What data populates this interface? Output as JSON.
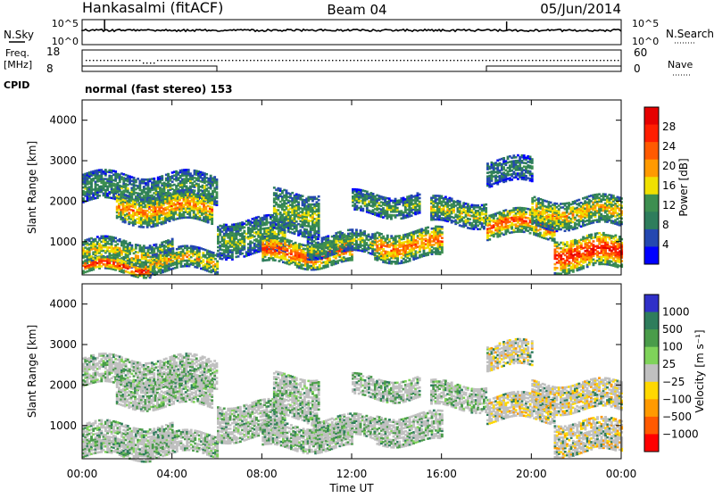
{
  "header": {
    "station": "Hankasalmi (fitACF)",
    "beam": "Beam 04",
    "date": "05/Jun/2014",
    "mode": "normal (fast stereo) 153"
  },
  "noise_panel": {
    "left_label": "N.Sky",
    "right_label": "N.Search",
    "left_ticks": [
      "10^5",
      "10^0"
    ],
    "right_ticks": [
      "10^5",
      "10^0"
    ]
  },
  "freq_panel": {
    "left_label_line1": "Freq.",
    "left_label_line2": "[MHz]",
    "right_label": "Nave",
    "left_ticks": [
      "18",
      "8"
    ],
    "right_ticks": [
      "60",
      "0"
    ]
  },
  "cpid_label": "CPID",
  "colors": {
    "power": [
      "#0000ff",
      "#2448b0",
      "#2e7d5c",
      "#3d8f50",
      "#f0e000",
      "#ff9a00",
      "#ff5a00",
      "#ff1e00",
      "#e60000"
    ],
    "velocity": [
      "#3030c8",
      "#2e7d5c",
      "#4a9c4a",
      "#7fd35a",
      "#c0c0c0",
      "#ffd800",
      "#ff9a00",
      "#ff5a00",
      "#ff0000"
    ],
    "background": "#ffffff"
  },
  "chart_data": [
    {
      "type": "heatmap",
      "name": "power",
      "ylabel": "Slant Range [km]",
      "ylim": [
        180,
        4500
      ],
      "yticks": [
        "1000",
        "2000",
        "3000",
        "4000"
      ],
      "colorbar_label": "Power [dB]",
      "colorbar_ticks": [
        "4",
        "8",
        "12",
        "16",
        "20",
        "24",
        "28"
      ],
      "colorbar_range": [
        0,
        30
      ]
    },
    {
      "type": "heatmap",
      "name": "velocity",
      "ylabel": "Slant Range [km]",
      "ylim": [
        180,
        4500
      ],
      "yticks": [
        "1000",
        "2000",
        "3000",
        "4000"
      ],
      "colorbar_label": "Velocity [m s⁻¹]",
      "colorbar_ticks": [
        "1000",
        "500",
        "100",
        "25",
        "−25",
        "−100",
        "−500",
        "−1000"
      ]
    }
  ],
  "x_axis": {
    "label": "Time UT",
    "ticks": [
      "00:00",
      "04:00",
      "08:00",
      "12:00",
      "16:00",
      "20:00",
      "00:00"
    ],
    "range_hours": [
      0,
      24
    ]
  }
}
